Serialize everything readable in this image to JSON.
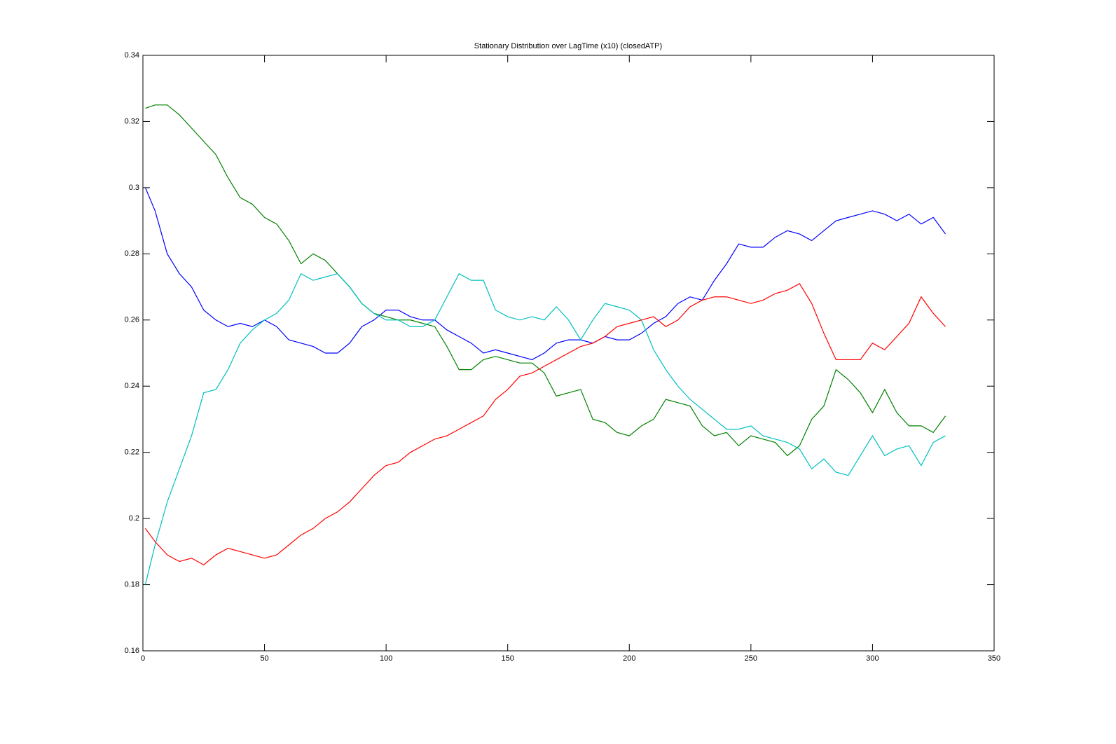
{
  "chart_data": {
    "type": "line",
    "title": "Stationary Distribution over LagTime (x10) (closedATP)",
    "x": [
      1,
      5,
      10,
      15,
      20,
      25,
      30,
      35,
      40,
      45,
      50,
      55,
      60,
      65,
      70,
      75,
      80,
      85,
      90,
      95,
      100,
      105,
      110,
      115,
      120,
      125,
      130,
      135,
      140,
      145,
      150,
      155,
      160,
      165,
      170,
      175,
      180,
      185,
      190,
      195,
      200,
      205,
      210,
      215,
      220,
      225,
      230,
      235,
      240,
      245,
      250,
      255,
      260,
      265,
      270,
      275,
      280,
      285,
      290,
      295,
      300,
      305,
      310,
      315,
      320,
      325,
      330
    ],
    "series": [
      {
        "color": "#0000ff",
        "values": [
          0.3,
          0.293,
          0.28,
          0.274,
          0.27,
          0.263,
          0.26,
          0.258,
          0.259,
          0.258,
          0.26,
          0.258,
          0.254,
          0.253,
          0.252,
          0.25,
          0.25,
          0.253,
          0.258,
          0.26,
          0.263,
          0.263,
          0.261,
          0.26,
          0.26,
          0.257,
          0.255,
          0.253,
          0.25,
          0.251,
          0.25,
          0.249,
          0.248,
          0.25,
          0.253,
          0.254,
          0.254,
          0.253,
          0.255,
          0.254,
          0.254,
          0.256,
          0.259,
          0.261,
          0.265,
          0.267,
          0.266,
          0.272,
          0.277,
          0.283,
          0.282,
          0.282,
          0.285,
          0.287,
          0.286,
          0.284,
          0.287,
          0.29,
          0.291,
          0.292,
          0.293,
          0.292,
          0.29,
          0.292,
          0.289,
          0.291,
          0.286
        ]
      },
      {
        "color": "#008000",
        "values": [
          0.324,
          0.325,
          0.325,
          0.322,
          0.318,
          0.314,
          0.31,
          0.303,
          0.297,
          0.295,
          0.291,
          0.289,
          0.284,
          0.277,
          0.28,
          0.278,
          0.274,
          0.27,
          0.265,
          0.262,
          0.261,
          0.26,
          0.26,
          0.259,
          0.258,
          0.252,
          0.245,
          0.245,
          0.248,
          0.249,
          0.248,
          0.247,
          0.247,
          0.244,
          0.237,
          0.238,
          0.239,
          0.23,
          0.229,
          0.226,
          0.225,
          0.228,
          0.23,
          0.236,
          0.235,
          0.234,
          0.228,
          0.225,
          0.226,
          0.222,
          0.225,
          0.224,
          0.223,
          0.219,
          0.222,
          0.23,
          0.234,
          0.245,
          0.242,
          0.238,
          0.232,
          0.239,
          0.232,
          0.228,
          0.228,
          0.226,
          0.231
        ]
      },
      {
        "color": "#00bfbf",
        "values": [
          0.18,
          0.192,
          0.205,
          0.215,
          0.225,
          0.238,
          0.239,
          0.245,
          0.253,
          0.257,
          0.26,
          0.262,
          0.266,
          0.274,
          0.272,
          0.273,
          0.274,
          0.27,
          0.265,
          0.262,
          0.26,
          0.26,
          0.258,
          0.258,
          0.26,
          0.267,
          0.274,
          0.272,
          0.272,
          0.263,
          0.261,
          0.26,
          0.261,
          0.26,
          0.264,
          0.26,
          0.254,
          0.26,
          0.265,
          0.264,
          0.263,
          0.26,
          0.251,
          0.245,
          0.24,
          0.236,
          0.233,
          0.23,
          0.227,
          0.227,
          0.228,
          0.225,
          0.224,
          0.223,
          0.221,
          0.215,
          0.218,
          0.214,
          0.213,
          0.219,
          0.225,
          0.219,
          0.221,
          0.222,
          0.216,
          0.223,
          0.225
        ]
      },
      {
        "color": "#ff0000",
        "values": [
          0.197,
          0.193,
          0.189,
          0.187,
          0.188,
          0.186,
          0.189,
          0.191,
          0.19,
          0.189,
          0.188,
          0.189,
          0.192,
          0.195,
          0.197,
          0.2,
          0.202,
          0.205,
          0.209,
          0.213,
          0.216,
          0.217,
          0.22,
          0.222,
          0.224,
          0.225,
          0.227,
          0.229,
          0.231,
          0.236,
          0.239,
          0.243,
          0.244,
          0.246,
          0.248,
          0.25,
          0.252,
          0.253,
          0.255,
          0.258,
          0.259,
          0.26,
          0.261,
          0.258,
          0.26,
          0.264,
          0.266,
          0.267,
          0.267,
          0.266,
          0.265,
          0.266,
          0.268,
          0.269,
          0.271,
          0.265,
          0.256,
          0.248,
          0.248,
          0.248,
          0.253,
          0.251,
          0.255,
          0.259,
          0.267,
          0.262,
          0.258
        ]
      }
    ],
    "xlim": [
      0,
      350
    ],
    "xticks": [
      0,
      50,
      100,
      150,
      200,
      250,
      300,
      350
    ],
    "ylim": [
      0.16,
      0.34
    ],
    "yticks": [
      0.16,
      0.18,
      0.2,
      0.22,
      0.24,
      0.26,
      0.28,
      0.3,
      0.32,
      0.34
    ],
    "grid": false
  }
}
